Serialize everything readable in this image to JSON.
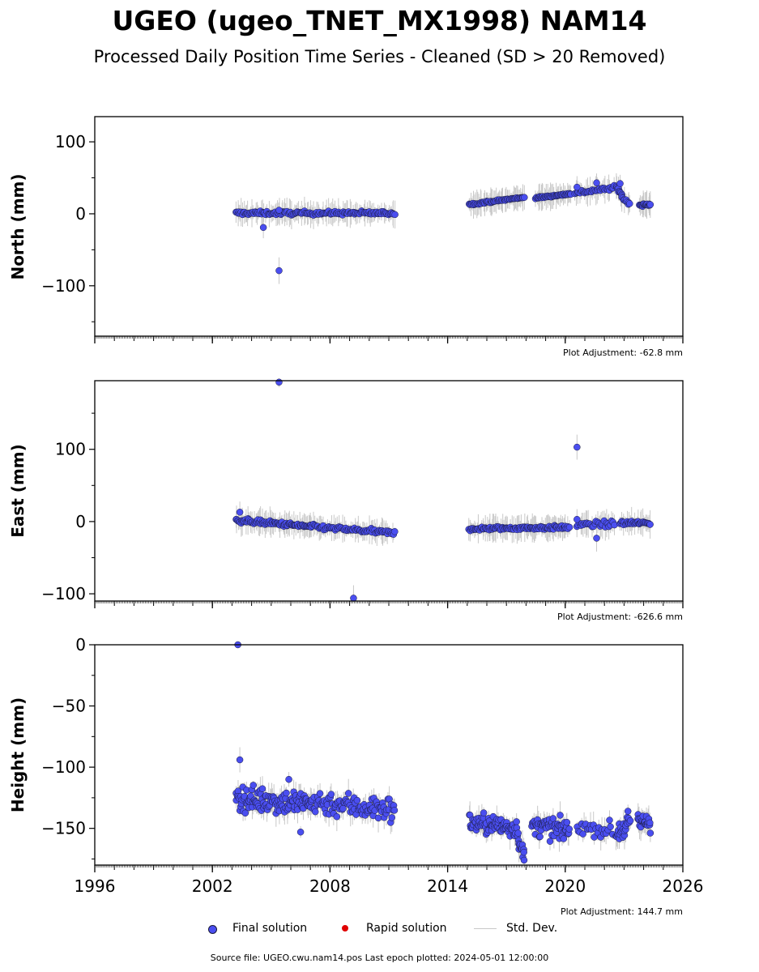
{
  "chart_data": {
    "type": "scatter",
    "title": "UGEO (ugeo_TNET_MX1998) NAM14",
    "subtitle": "Processed Daily Position Time Series - Cleaned (SD > 20 Removed)",
    "xlim": [
      1996,
      2026
    ],
    "x_ticks": [
      "1996",
      "2002",
      "2008",
      "2014",
      "2020",
      "2026"
    ],
    "legend": {
      "placement": "bottom",
      "entries": [
        "Final solution",
        "Rapid solution",
        "Std. Dev."
      ]
    },
    "colors": {
      "final": "#4a4ef0",
      "rapid": "#e00000",
      "stddev": "#c8c8c8",
      "edge": "#1a1a3a"
    },
    "panels": [
      {
        "ylabel": "North (mm)",
        "ylim": [
          -170,
          135
        ],
        "y_ticks": [
          100,
          0,
          -100
        ],
        "y_tick_labels": [
          "100",
          "0",
          "−100"
        ],
        "adjustment": "Plot Adjustment: -62.8 mm",
        "segments": [
          {
            "x0": 2003.2,
            "x1": 2011.3,
            "y0": 1,
            "y1": 1,
            "noise": 2.5,
            "n": 150
          },
          {
            "x0": 2015.1,
            "x1": 2017.9,
            "y0": 13,
            "y1": 23,
            "noise": 1.2,
            "n": 60
          },
          {
            "x0": 2018.5,
            "x1": 2020.3,
            "y0": 22,
            "y1": 28,
            "noise": 1.2,
            "n": 45
          },
          {
            "x0": 2020.5,
            "x1": 2022.5,
            "y0": 29,
            "y1": 36,
            "noise": 2.5,
            "n": 35
          },
          {
            "x0": 2022.6,
            "x1": 2022.9,
            "y0": 38,
            "y1": 26,
            "noise": 2,
            "n": 10
          },
          {
            "x0": 2022.9,
            "x1": 2023.3,
            "y0": 22,
            "y1": 14,
            "noise": 2,
            "n": 10
          },
          {
            "x0": 2023.8,
            "x1": 2024.35,
            "y0": 12,
            "y1": 13,
            "noise": 1.5,
            "n": 18
          }
        ],
        "outliers": [
          [
            2005.4,
            -79
          ],
          [
            2004.6,
            -19
          ],
          [
            2005.4,
            5
          ],
          [
            2020.6,
            37
          ],
          [
            2021.6,
            43
          ],
          [
            2022.8,
            42
          ]
        ]
      },
      {
        "ylabel": "East (mm)",
        "ylim": [
          -110,
          195
        ],
        "y_ticks": [
          100,
          0,
          -100
        ],
        "y_tick_labels": [
          "100",
          "0",
          "−100"
        ],
        "adjustment": "Plot Adjustment: -626.6 mm",
        "segments": [
          {
            "x0": 2003.2,
            "x1": 2007.0,
            "y0": 2,
            "y1": -7,
            "noise": 3,
            "n": 90
          },
          {
            "x0": 2007.0,
            "x1": 2011.3,
            "y0": -7,
            "y1": -16,
            "noise": 3,
            "n": 80
          },
          {
            "x0": 2015.1,
            "x1": 2020.2,
            "y0": -10,
            "y1": -8,
            "noise": 2.5,
            "n": 110
          },
          {
            "x0": 2020.6,
            "x1": 2022.5,
            "y0": -5,
            "y1": -3,
            "noise": 4,
            "n": 30
          },
          {
            "x0": 2022.8,
            "x1": 2024.35,
            "y0": -2,
            "y1": -2,
            "noise": 3,
            "n": 35
          }
        ],
        "outliers": [
          [
            2005.4,
            193
          ],
          [
            2020.6,
            103
          ],
          [
            2009.2,
            -106
          ],
          [
            2021.6,
            -23
          ],
          [
            2003.4,
            13
          ],
          [
            2020.6,
            3
          ]
        ]
      },
      {
        "ylabel": "Height (mm)",
        "ylim": [
          -180,
          0
        ],
        "y_ticks": [
          0,
          -50,
          -100,
          -150
        ],
        "y_tick_labels": [
          "0",
          "−50",
          "−100",
          "−150"
        ],
        "adjustment": "Plot Adjustment: 144.7 mm",
        "segments": [
          {
            "x0": 2003.2,
            "x1": 2007.0,
            "y0": -125,
            "y1": -130,
            "noise": 10,
            "n": 120
          },
          {
            "x0": 2007.0,
            "x1": 2011.3,
            "y0": -128,
            "y1": -135,
            "noise": 10,
            "n": 100
          },
          {
            "x0": 2015.1,
            "x1": 2017.6,
            "y0": -145,
            "y1": -150,
            "noise": 8,
            "n": 80
          },
          {
            "x0": 2017.6,
            "x1": 2017.9,
            "y0": -160,
            "y1": -172,
            "noise": 5,
            "n": 12
          },
          {
            "x0": 2018.3,
            "x1": 2020.2,
            "y0": -148,
            "y1": -152,
            "noise": 8,
            "n": 60
          },
          {
            "x0": 2020.6,
            "x1": 2022.4,
            "y0": -148,
            "y1": -152,
            "noise": 6,
            "n": 25
          },
          {
            "x0": 2022.6,
            "x1": 2023.3,
            "y0": -155,
            "y1": -145,
            "noise": 8,
            "n": 25
          },
          {
            "x0": 2023.7,
            "x1": 2024.35,
            "y0": -145,
            "y1": -145,
            "noise": 7,
            "n": 25
          }
        ],
        "outliers": [
          [
            2003.3,
            0
          ],
          [
            2003.4,
            -94
          ],
          [
            2005.9,
            -110
          ],
          [
            2006.5,
            -153
          ],
          [
            2017.9,
            -176
          ]
        ]
      }
    ]
  },
  "footer": "Source file: UGEO.cwu.nam14.pos  Last epoch plotted: 2024-05-01 12:00:00"
}
